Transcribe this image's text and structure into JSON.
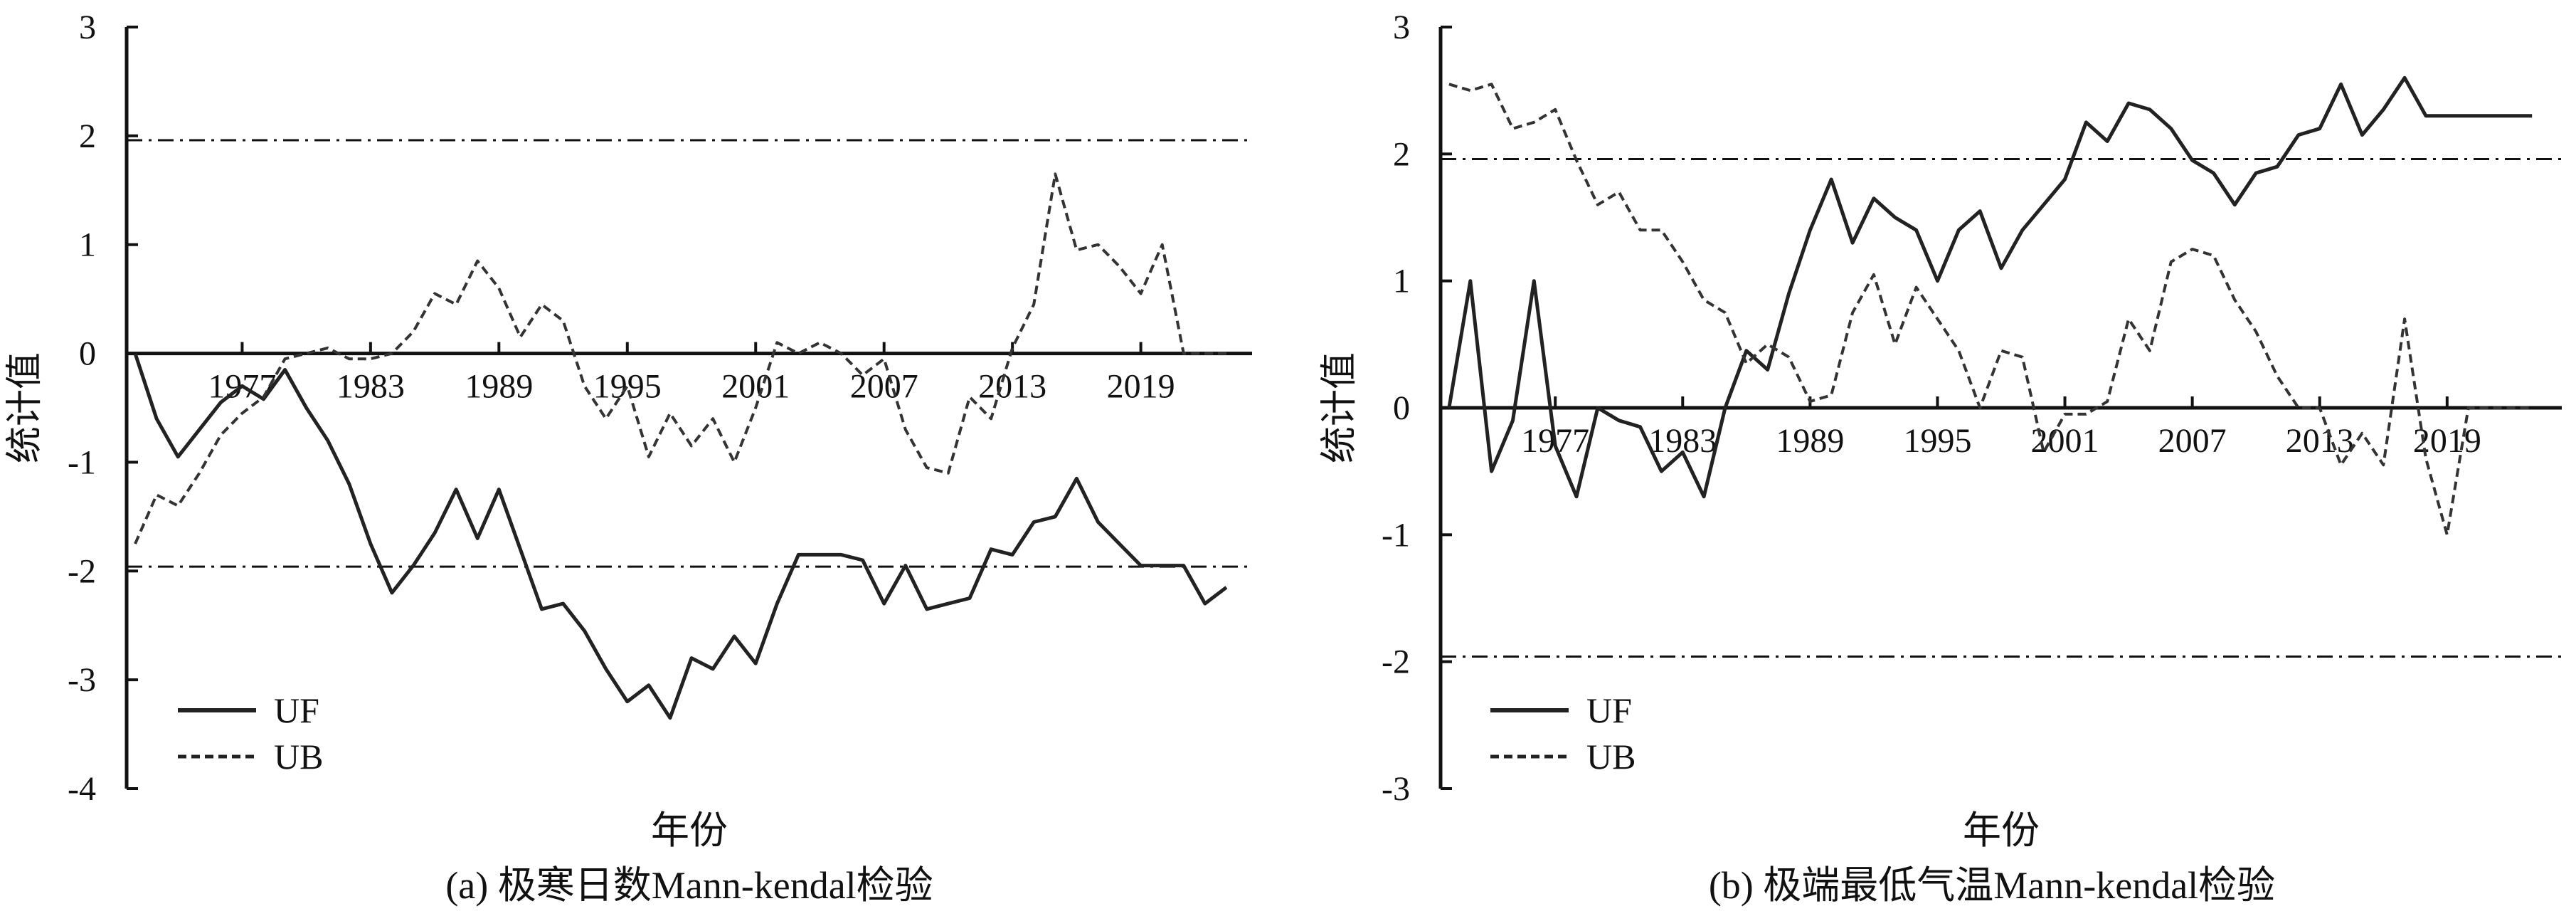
{
  "chart_data": [
    {
      "type": "line",
      "title": "(a) 极寒日数Mann-kendal检验",
      "xlabel": "年份",
      "ylabel": "统计值",
      "xlim": [
        1971.6,
        2024.2
      ],
      "ylim": [
        -4,
        3
      ],
      "yticks": [
        3,
        2,
        1,
        0,
        -1,
        -2,
        -3,
        -4
      ],
      "xticks": [
        1977,
        1983,
        1989,
        1995,
        2001,
        2007,
        2013,
        2019
      ],
      "grid": false,
      "legend_position": "bottom-left",
      "confidence_lines": [
        1.96,
        -1.96
      ],
      "series": [
        {
          "name": "UF",
          "style": "solid",
          "x": [
            1972,
            1973,
            1974,
            1975,
            1976,
            1977,
            1978,
            1979,
            1980,
            1981,
            1982,
            1983,
            1984,
            1985,
            1986,
            1987,
            1988,
            1989,
            1990,
            1991,
            1992,
            1993,
            1994,
            1995,
            1996,
            1997,
            1998,
            1999,
            2000,
            2001,
            2002,
            2003,
            2004,
            2005,
            2006,
            2007,
            2008,
            2009,
            2010,
            2011,
            2012,
            2013,
            2014,
            2015,
            2016,
            2017,
            2018,
            2019,
            2020,
            2021,
            2022,
            2023
          ],
          "values": [
            0.0,
            -0.6,
            -0.95,
            -0.7,
            -0.45,
            -0.3,
            -0.42,
            -0.15,
            -0.5,
            -0.8,
            -1.2,
            -1.75,
            -2.2,
            -1.95,
            -1.65,
            -1.25,
            -1.7,
            -1.25,
            -1.8,
            -2.35,
            -2.3,
            -2.55,
            -2.9,
            -3.2,
            -3.05,
            -3.35,
            -2.8,
            -2.9,
            -2.6,
            -2.85,
            -2.3,
            -1.85,
            -1.85,
            -1.85,
            -1.9,
            -2.3,
            -1.95,
            -2.35,
            -2.3,
            -2.25,
            -1.8,
            -1.85,
            -1.55,
            -1.5,
            -1.15,
            -1.55,
            -1.75,
            -1.95,
            -1.95,
            -1.95,
            -2.3,
            -2.15
          ]
        },
        {
          "name": "UB",
          "style": "dashed",
          "x": [
            1972,
            1973,
            1974,
            1975,
            1976,
            1977,
            1978,
            1979,
            1980,
            1981,
            1982,
            1983,
            1984,
            1985,
            1986,
            1987,
            1988,
            1989,
            1990,
            1991,
            1992,
            1993,
            1994,
            1995,
            1996,
            1997,
            1998,
            1999,
            2000,
            2001,
            2002,
            2003,
            2004,
            2005,
            2006,
            2007,
            2008,
            2009,
            2010,
            2011,
            2012,
            2013,
            2014,
            2015,
            2016,
            2017,
            2018,
            2019,
            2020,
            2021,
            2022,
            2023
          ],
          "values": [
            -1.75,
            -1.3,
            -1.4,
            -1.1,
            -0.75,
            -0.55,
            -0.4,
            -0.05,
            0.0,
            0.05,
            -0.05,
            -0.05,
            0.0,
            0.2,
            0.55,
            0.45,
            0.85,
            0.6,
            0.15,
            0.45,
            0.3,
            -0.3,
            -0.6,
            -0.3,
            -0.95,
            -0.55,
            -0.85,
            -0.6,
            -1.0,
            -0.5,
            0.1,
            0.0,
            0.1,
            0.0,
            -0.2,
            -0.05,
            -0.7,
            -1.05,
            -1.1,
            -0.4,
            -0.6,
            0.05,
            0.45,
            1.65,
            0.95,
            1.0,
            0.8,
            0.55,
            1.0,
            0.0,
            0.0,
            0.0
          ]
        }
      ]
    },
    {
      "type": "line",
      "title": "(b) 极端最低气温Mann-kendal检验",
      "xlabel": "年份",
      "ylabel": "统计值",
      "xlim": [
        1971.6,
        2024.4
      ],
      "ylim": [
        -3,
        3
      ],
      "yticks": [
        3,
        2,
        1,
        0,
        -1,
        -2,
        -3
      ],
      "xticks": [
        1977,
        1983,
        1989,
        1995,
        2001,
        2007,
        2013,
        2019
      ],
      "grid": false,
      "legend_position": "bottom-left",
      "confidence_lines": [
        1.96,
        -1.96
      ],
      "series": [
        {
          "name": "UF",
          "style": "solid",
          "x": [
            1972,
            1973,
            1974,
            1975,
            1976,
            1977,
            1978,
            1979,
            1980,
            1981,
            1982,
            1983,
            1984,
            1985,
            1986,
            1987,
            1988,
            1989,
            1990,
            1991,
            1992,
            1993,
            1994,
            1995,
            1996,
            1997,
            1998,
            1999,
            2000,
            2001,
            2002,
            2003,
            2004,
            2005,
            2006,
            2007,
            2008,
            2009,
            2010,
            2011,
            2012,
            2013,
            2014,
            2015,
            2016,
            2017,
            2018,
            2019,
            2020,
            2021,
            2022,
            2023
          ],
          "values": [
            0.0,
            1.0,
            -0.5,
            -0.1,
            1.0,
            -0.3,
            -0.7,
            0.0,
            -0.1,
            -0.15,
            -0.5,
            -0.35,
            -0.7,
            0.0,
            0.45,
            0.3,
            0.9,
            1.4,
            1.8,
            1.3,
            1.65,
            1.5,
            1.4,
            1.0,
            1.4,
            1.55,
            1.1,
            1.4,
            1.6,
            1.8,
            2.25,
            2.1,
            2.4,
            2.35,
            2.2,
            1.95,
            1.85,
            1.6,
            1.85,
            1.9,
            2.15,
            2.2,
            2.55,
            2.15,
            2.35,
            2.6,
            2.3,
            2.3,
            2.3,
            2.3,
            2.3,
            2.3
          ]
        },
        {
          "name": "UB",
          "style": "dashed",
          "x": [
            1972,
            1973,
            1974,
            1975,
            1976,
            1977,
            1978,
            1979,
            1980,
            1981,
            1982,
            1983,
            1984,
            1985,
            1986,
            1987,
            1988,
            1989,
            1990,
            1991,
            1992,
            1993,
            1994,
            1995,
            1996,
            1997,
            1998,
            1999,
            2000,
            2001,
            2002,
            2003,
            2004,
            2005,
            2006,
            2007,
            2008,
            2009,
            2010,
            2011,
            2012,
            2013,
            2014,
            2015,
            2016,
            2017,
            2018,
            2019,
            2020,
            2021,
            2022,
            2023
          ],
          "values": [
            2.55,
            2.5,
            2.55,
            2.2,
            2.25,
            2.35,
            1.95,
            1.6,
            1.7,
            1.4,
            1.4,
            1.15,
            0.85,
            0.75,
            0.35,
            0.5,
            0.4,
            0.05,
            0.1,
            0.75,
            1.05,
            0.5,
            0.95,
            0.7,
            0.45,
            0.0,
            0.45,
            0.4,
            -0.35,
            -0.05,
            -0.05,
            0.05,
            0.7,
            0.45,
            1.15,
            1.25,
            1.2,
            0.85,
            0.6,
            0.25,
            0.0,
            0.0,
            -0.45,
            -0.2,
            -0.45,
            0.7,
            -0.4,
            -1.0,
            0.0,
            0.0,
            0.0,
            0.0
          ]
        }
      ]
    }
  ]
}
